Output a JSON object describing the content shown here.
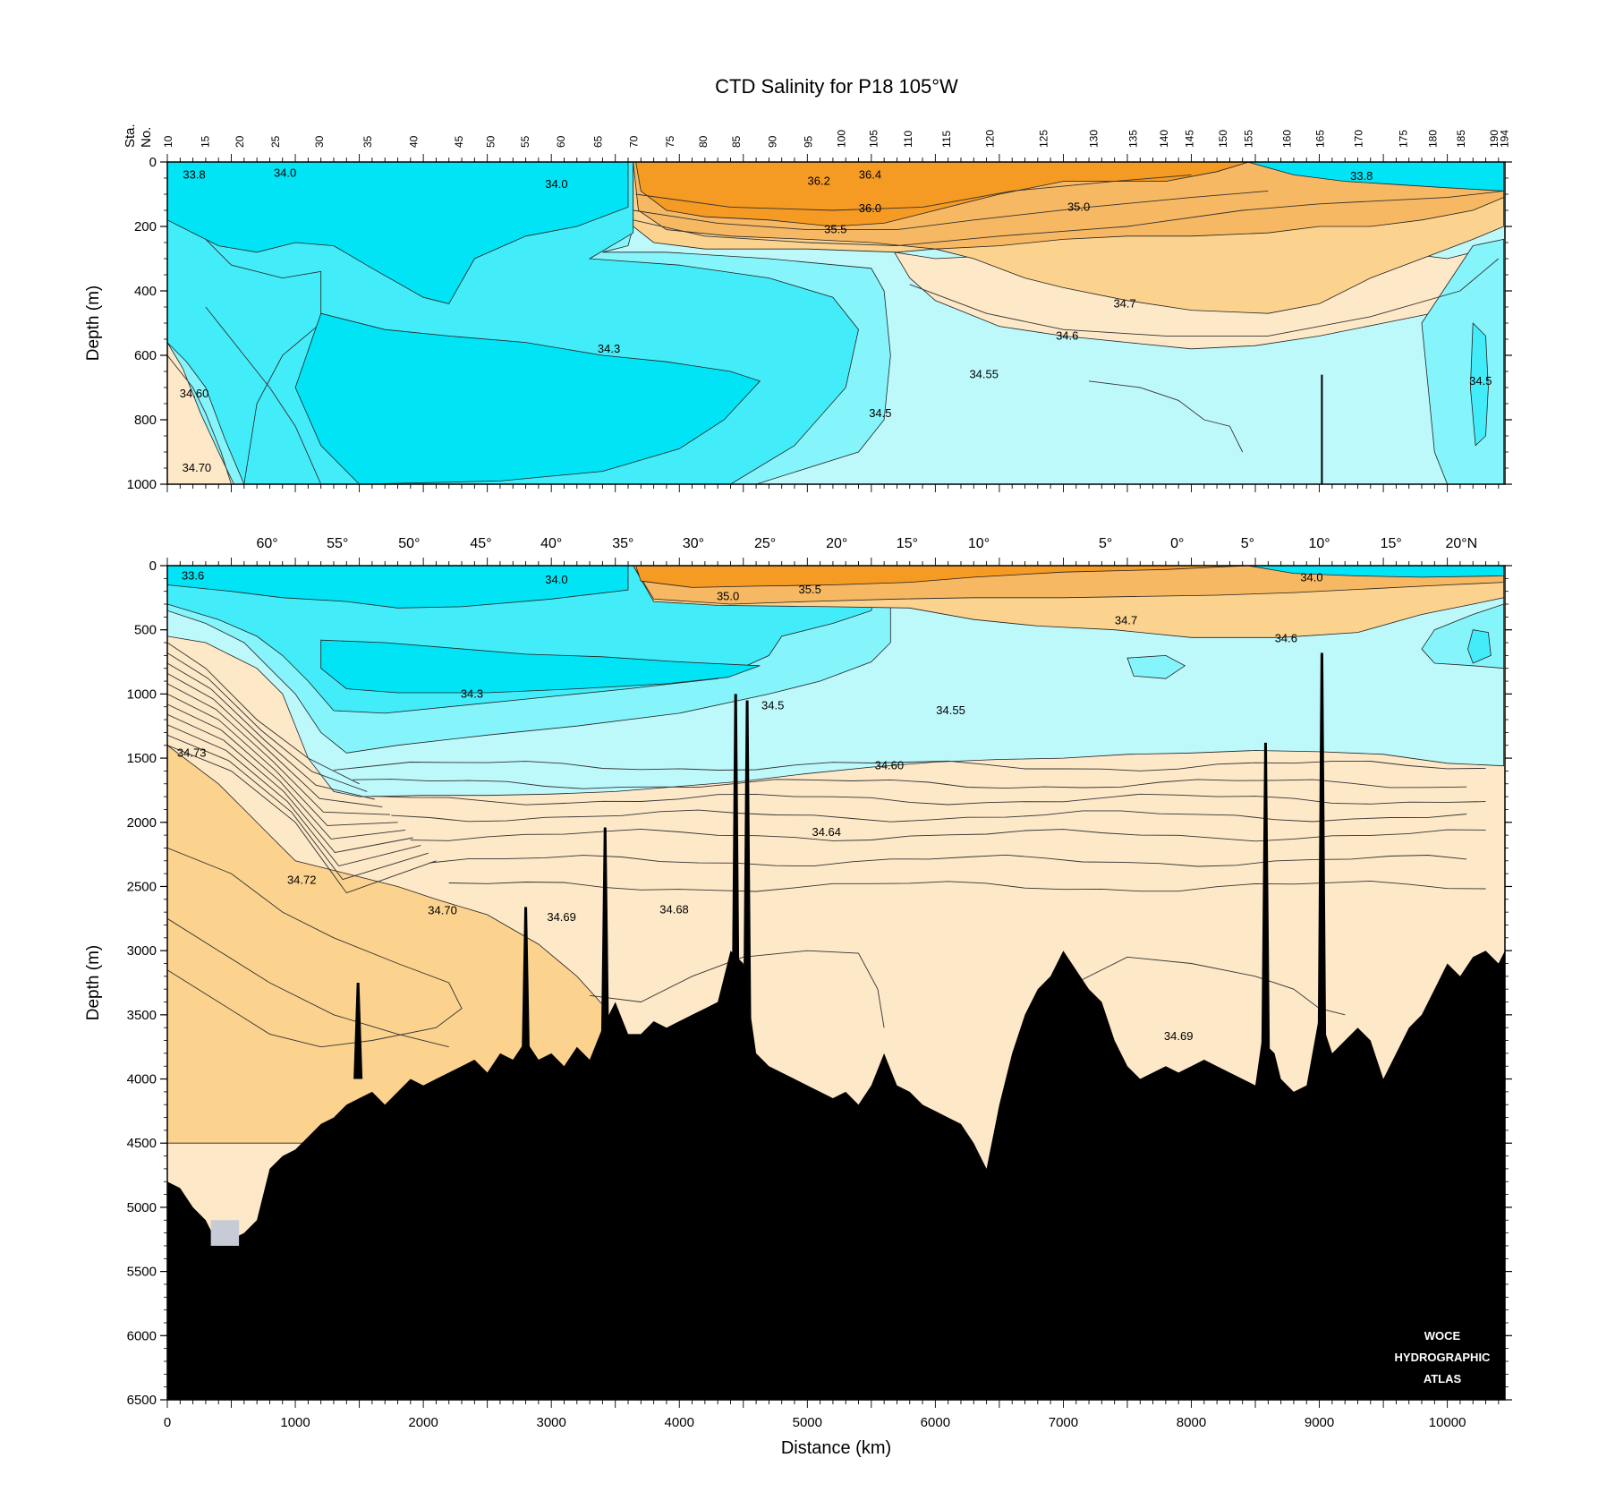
{
  "title": "CTD Salinity for P18 105°W",
  "colors": {
    "fresh_dark": "#00e4f5",
    "fresh_mid": "#43ecf9",
    "fresh_light": "#86f4fb",
    "fresh_pale": "#bdf8fb",
    "salty_pale": "#fde8c8",
    "salty_light": "#fbd28e",
    "salty_mid": "#f7b863",
    "salty_strong": "#f59a22",
    "bottom": "#000000"
  },
  "watermark": "WOCE HYDROGRAPHIC ATLAS",
  "chart_data": [
    {
      "type": "heatmap",
      "name": "upper",
      "xlabel": "",
      "ylabel": "Depth (m)",
      "xlim": [
        0,
        10450
      ],
      "ylim": [
        1000,
        0
      ],
      "yticks": [
        0,
        200,
        400,
        600,
        800,
        1000
      ],
      "station_axis_label": "Sta. No.",
      "stations": [
        {
          "no": "10",
          "x": 0
        },
        {
          "no": "15",
          "x": 290
        },
        {
          "no": "20",
          "x": 560
        },
        {
          "no": "25",
          "x": 840
        },
        {
          "no": "30",
          "x": 1180
        },
        {
          "no": "35",
          "x": 1560
        },
        {
          "no": "40",
          "x": 1920
        },
        {
          "no": "45",
          "x": 2270
        },
        {
          "no": "50",
          "x": 2520
        },
        {
          "no": "55",
          "x": 2790
        },
        {
          "no": "60",
          "x": 3070
        },
        {
          "no": "65",
          "x": 3360
        },
        {
          "no": "70",
          "x": 3640
        },
        {
          "no": "75",
          "x": 3920
        },
        {
          "no": "80",
          "x": 4180
        },
        {
          "no": "85",
          "x": 4440
        },
        {
          "no": "90",
          "x": 4720
        },
        {
          "no": "95",
          "x": 5000
        },
        {
          "no": "100",
          "x": 5260
        },
        {
          "no": "105",
          "x": 5510
        },
        {
          "no": "110",
          "x": 5780
        },
        {
          "no": "115",
          "x": 6080
        },
        {
          "no": "120",
          "x": 6420
        },
        {
          "no": "125",
          "x": 6840
        },
        {
          "no": "130",
          "x": 7230
        },
        {
          "no": "135",
          "x": 7540
        },
        {
          "no": "140",
          "x": 7780
        },
        {
          "no": "145",
          "x": 7980
        },
        {
          "no": "150",
          "x": 8240
        },
        {
          "no": "155",
          "x": 8440
        },
        {
          "no": "160",
          "x": 8740
        },
        {
          "no": "165",
          "x": 9000
        },
        {
          "no": "170",
          "x": 9300
        },
        {
          "no": "175",
          "x": 9650
        },
        {
          "no": "180",
          "x": 9880
        },
        {
          "no": "185",
          "x": 10100
        },
        {
          "no": "190",
          "x": 10360
        },
        {
          "no": "194",
          "x": 10440
        }
      ],
      "contour_labels": [
        {
          "text": "33.8",
          "x": 210,
          "y": 40
        },
        {
          "text": "34.0",
          "x": 920,
          "y": 35
        },
        {
          "text": "34.0",
          "x": 3040,
          "y": 70
        },
        {
          "text": "36.2",
          "x": 5090,
          "y": 60
        },
        {
          "text": "36.4",
          "x": 5490,
          "y": 40
        },
        {
          "text": "36.0",
          "x": 5490,
          "y": 145
        },
        {
          "text": "35.5",
          "x": 5220,
          "y": 210
        },
        {
          "text": "35.0",
          "x": 7120,
          "y": 140
        },
        {
          "text": "33.8",
          "x": 9330,
          "y": 45
        },
        {
          "text": "34.7",
          "x": 7480,
          "y": 440
        },
        {
          "text": "34.6",
          "x": 7030,
          "y": 540
        },
        {
          "text": "34.3",
          "x": 3450,
          "y": 580
        },
        {
          "text": "34.55",
          "x": 6380,
          "y": 660
        },
        {
          "text": "34.60",
          "x": 210,
          "y": 720
        },
        {
          "text": "34.5",
          "x": 10260,
          "y": 680
        },
        {
          "text": "34.5",
          "x": 5570,
          "y": 780
        },
        {
          "text": "34.70",
          "x": 230,
          "y": 950
        }
      ]
    },
    {
      "type": "heatmap",
      "name": "full",
      "xlabel": "Distance (km)",
      "ylabel": "Depth (m)",
      "xlim": [
        0,
        10450
      ],
      "ylim": [
        6500,
        0
      ],
      "xticks": [
        0,
        1000,
        2000,
        3000,
        4000,
        5000,
        6000,
        7000,
        8000,
        9000,
        10000
      ],
      "yticks": [
        0,
        500,
        1000,
        1500,
        2000,
        2500,
        3000,
        3500,
        4000,
        4500,
        5000,
        5500,
        6000,
        6500
      ],
      "latitudes": [
        {
          "label": "60°",
          "x": 780
        },
        {
          "label": "55°",
          "x": 1330
        },
        {
          "label": "50°",
          "x": 1890
        },
        {
          "label": "45°",
          "x": 2450
        },
        {
          "label": "40°",
          "x": 3000
        },
        {
          "label": "35°",
          "x": 3560
        },
        {
          "label": "30°",
          "x": 4110
        },
        {
          "label": "25°",
          "x": 4670
        },
        {
          "label": "20°",
          "x": 5230
        },
        {
          "label": "15°",
          "x": 5780
        },
        {
          "label": "10°",
          "x": 6340
        },
        {
          "label": "5°",
          "x": 7330
        },
        {
          "label": "0°",
          "x": 7890
        },
        {
          "label": "5°",
          "x": 8440
        },
        {
          "label": "10°",
          "x": 9000
        },
        {
          "label": "15°",
          "x": 9560
        },
        {
          "label": "20°N",
          "x": 10110
        }
      ],
      "contour_labels": [
        {
          "text": "33.6",
          "x": 200,
          "y": 80
        },
        {
          "text": "34.0",
          "x": 3040,
          "y": 110
        },
        {
          "text": "35.0",
          "x": 4380,
          "y": 240
        },
        {
          "text": "35.5",
          "x": 5020,
          "y": 190
        },
        {
          "text": "34.0",
          "x": 8940,
          "y": 95
        },
        {
          "text": "34.7",
          "x": 7490,
          "y": 430
        },
        {
          "text": "34.6",
          "x": 8740,
          "y": 570
        },
        {
          "text": "34.3",
          "x": 2380,
          "y": 1000
        },
        {
          "text": "34.5",
          "x": 4730,
          "y": 1090
        },
        {
          "text": "34.55",
          "x": 6120,
          "y": 1130
        },
        {
          "text": "34.73",
          "x": 190,
          "y": 1460
        },
        {
          "text": "34.60",
          "x": 5640,
          "y": 1560
        },
        {
          "text": "34.64",
          "x": 5150,
          "y": 2080
        },
        {
          "text": "34.72",
          "x": 1050,
          "y": 2450
        },
        {
          "text": "34.70",
          "x": 2150,
          "y": 2690
        },
        {
          "text": "34.69",
          "x": 3080,
          "y": 2740
        },
        {
          "text": "34.68",
          "x": 3960,
          "y": 2680
        },
        {
          "text": "34.69",
          "x": 7900,
          "y": 3670
        }
      ],
      "ridges": [
        {
          "x": 2800,
          "top": 2660
        },
        {
          "x": 3420,
          "top": 2040
        },
        {
          "x": 4440,
          "top": 1000
        },
        {
          "x": 4530,
          "top": 1050
        },
        {
          "x": 8580,
          "top": 1380
        },
        {
          "x": 9020,
          "top": 680
        },
        {
          "x": 1490,
          "top": 3250
        }
      ]
    }
  ]
}
